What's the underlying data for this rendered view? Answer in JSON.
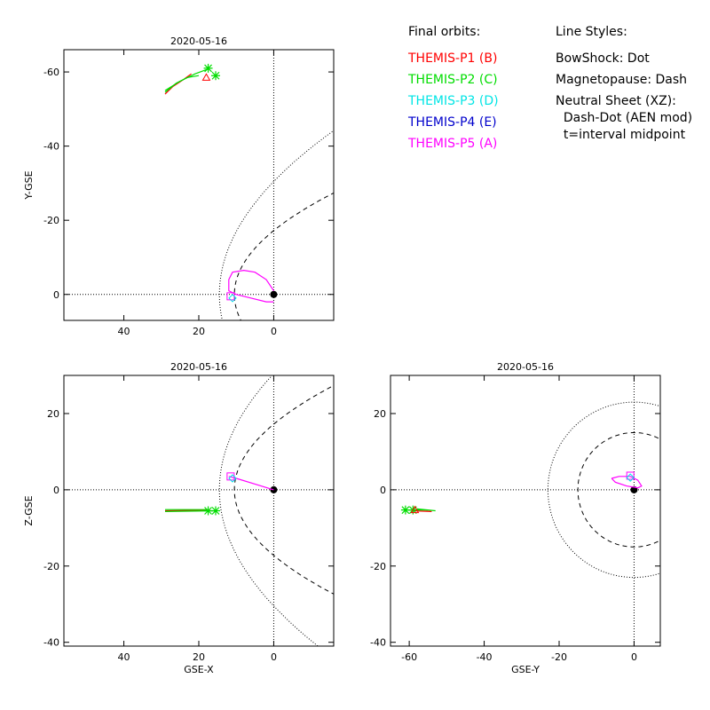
{
  "legend": {
    "orbits_title": "Final orbits:",
    "styles_title": "Line Styles:",
    "probes": [
      {
        "label": "THEMIS-P1 (B)",
        "color": "#ff0000"
      },
      {
        "label": "THEMIS-P2 (C)",
        "color": "#00dd00"
      },
      {
        "label": "THEMIS-P3 (D)",
        "color": "#00e5e5"
      },
      {
        "label": "THEMIS-P4 (E)",
        "color": "#0000cc"
      },
      {
        "label": "THEMIS-P5 (A)",
        "color": "#ff00ff"
      }
    ],
    "styles": [
      "BowShock: Dot",
      "Magnetopause: Dash",
      "Neutral Sheet (XZ):",
      "  Dash-Dot (AEN mod)",
      "  t=interval midpoint"
    ]
  },
  "chart_data": [
    {
      "type": "line",
      "panel": "x-y",
      "title": "2020-05-16",
      "xlabel": "",
      "ylabel": "Y-GSE",
      "xlim": [
        56,
        -16
      ],
      "ylim": [
        7,
        -66
      ],
      "xticks": [
        40,
        20,
        0
      ],
      "yticks": [
        -60,
        -40,
        -20,
        0
      ],
      "orbits": [
        {
          "probe": "THEMIS-P1 (B)",
          "points": [
            [
              29,
              -54
            ],
            [
              27,
              -56
            ],
            [
              24,
              -58
            ],
            [
              22,
              -59.5
            ]
          ]
        },
        {
          "probe": "THEMIS-P2 (C)",
          "points": [
            [
              29,
              -54.5
            ],
            [
              26,
              -57
            ],
            [
              23,
              -58.5
            ],
            [
              20,
              -59
            ]
          ]
        },
        {
          "probe": "THEMIS-P1/P2 track",
          "points": [
            [
              29,
              -55
            ],
            [
              25,
              -57.5
            ],
            [
              21,
              -59.5
            ],
            [
              17,
              -61
            ]
          ]
        },
        {
          "probe": "THEMIS-P3/P4/P5 orbit",
          "points": [
            [
              0,
              -1
            ],
            [
              2,
              -4
            ],
            [
              5,
              -6
            ],
            [
              8,
              -6.5
            ],
            [
              11,
              -6
            ],
            [
              12,
              -4
            ],
            [
              12,
              -1
            ],
            [
              10,
              0
            ],
            [
              6,
              1
            ],
            [
              2,
              2
            ],
            [
              0,
              2
            ]
          ]
        }
      ],
      "markers": [
        {
          "probe": "THEMIS-P1/P2 track",
          "symbol": "asterisk",
          "x": 17.5,
          "y": -61
        },
        {
          "probe": "THEMIS-P2 (C)",
          "symbol": "asterisk",
          "x": 15.5,
          "y": -59
        },
        {
          "probe": "THEMIS-P1 (B)",
          "symbol": "triangle",
          "x": 18,
          "y": -58.5
        },
        {
          "probe": "THEMIS-P5 (A)",
          "symbol": "square",
          "x": 11.5,
          "y": 0.5
        },
        {
          "probe": "THEMIS-P3 (D)",
          "symbol": "diamond",
          "x": 11,
          "y": 1
        }
      ]
    },
    {
      "type": "line",
      "panel": "x-z",
      "title": "2020-05-16",
      "xlabel": "GSE-X",
      "ylabel": "Z-GSE",
      "xlim": [
        56,
        -16
      ],
      "ylim": [
        -41,
        30
      ],
      "xticks": [
        40,
        20,
        0
      ],
      "yticks": [
        20,
        0,
        -20,
        -40
      ],
      "orbits": [
        {
          "probe": "THEMIS-P1 (B)",
          "points": [
            [
              29,
              -5.5
            ],
            [
              17,
              -5.3
            ]
          ]
        },
        {
          "probe": "THEMIS-P2 (C)",
          "points": [
            [
              29,
              -5.7
            ],
            [
              15,
              -5.5
            ]
          ]
        },
        {
          "probe": "THEMIS-P1/P2 track",
          "points": [
            [
              29,
              -5.2
            ],
            [
              17.5,
              -5.2
            ]
          ]
        },
        {
          "probe": "THEMIS-P3/P4/P5 orbit",
          "points": [
            [
              0,
              0
            ],
            [
              5,
              1.5
            ],
            [
              10,
              3
            ],
            [
              12,
              3.5
            ]
          ]
        }
      ],
      "markers": [
        {
          "probe": "THEMIS-P1/P2 track",
          "symbol": "asterisk",
          "x": 17.5,
          "y": -5.5
        },
        {
          "probe": "THEMIS-P2 (C)",
          "symbol": "asterisk",
          "x": 15.5,
          "y": -5.5
        },
        {
          "probe": "THEMIS-P5 (A)",
          "symbol": "square",
          "x": 11.5,
          "y": 3.5
        },
        {
          "probe": "THEMIS-P3 (D)",
          "symbol": "diamond",
          "x": 11,
          "y": 3
        }
      ]
    },
    {
      "type": "line",
      "panel": "y-z",
      "title": "2020-05-16",
      "xlabel": "GSE-Y",
      "ylabel": "",
      "xlim": [
        -65,
        7
      ],
      "ylim": [
        -41,
        30
      ],
      "xticks": [
        -60,
        -40,
        -20,
        0
      ],
      "yticks": [
        20,
        0,
        -20,
        -40
      ],
      "orbits": [
        {
          "probe": "THEMIS-P1 (B)",
          "points": [
            [
              -59,
              -5.5
            ],
            [
              -54,
              -5.7
            ]
          ]
        },
        {
          "probe": "THEMIS-P2 (C)",
          "points": [
            [
              -58,
              -5
            ],
            [
              -53,
              -5.5
            ]
          ]
        },
        {
          "probe": "THEMIS-P1/P2 track",
          "points": [
            [
              -61,
              -5.3
            ],
            [
              -55,
              -5.3
            ]
          ]
        },
        {
          "probe": "THEMIS-P3/P4/P5 orbit",
          "points": [
            [
              -6,
              3
            ],
            [
              -4,
              3.5
            ],
            [
              -1,
              3.5
            ],
            [
              1,
              2.5
            ],
            [
              2,
              1
            ],
            [
              1,
              0.5
            ],
            [
              -2,
              1
            ],
            [
              -5,
              2
            ],
            [
              -6,
              3
            ]
          ]
        }
      ],
      "markers": [
        {
          "probe": "THEMIS-P1/P2 track",
          "symbol": "asterisk",
          "x": -61,
          "y": -5.3
        },
        {
          "probe": "THEMIS-P2 (C)",
          "symbol": "asterisk",
          "x": -59,
          "y": -5.3
        },
        {
          "probe": "THEMIS-P1 (B)",
          "symbol": "triangle",
          "x": -58.5,
          "y": -5.3
        },
        {
          "probe": "THEMIS-P5 (A)",
          "symbol": "square",
          "x": -1,
          "y": 3.7
        },
        {
          "probe": "THEMIS-P3 (D)",
          "symbol": "diamond",
          "x": -1,
          "y": 3.2
        }
      ]
    }
  ]
}
